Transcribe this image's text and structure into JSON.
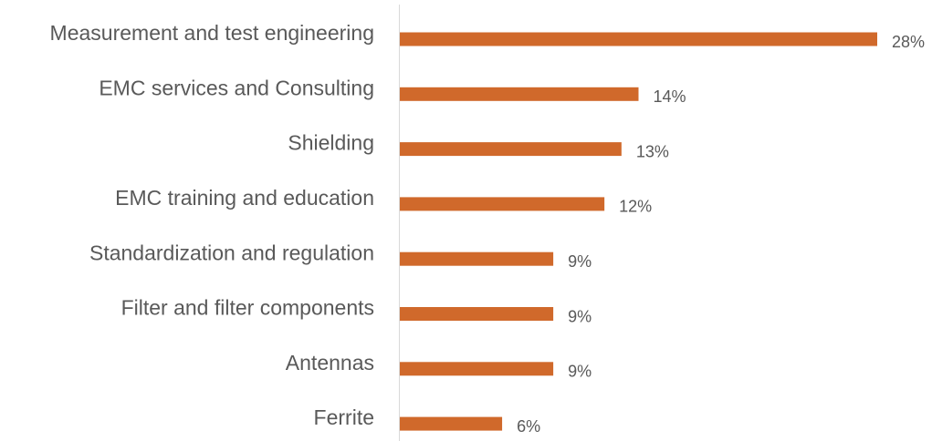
{
  "chart_data": {
    "type": "hbar",
    "categories": [
      "Measurement and test engineering",
      "EMC services and Consulting",
      "Shielding",
      "EMC training and education",
      "Standardization and regulation",
      "Filter and filter components",
      "Antennas",
      "Ferrite"
    ],
    "values": [
      28,
      14,
      13,
      12,
      9,
      9,
      9,
      6
    ],
    "value_labels": [
      "28%",
      "14%",
      "13%",
      "12%",
      "9%",
      "9%",
      "9%",
      "6%"
    ],
    "color": "#d0692b"
  }
}
